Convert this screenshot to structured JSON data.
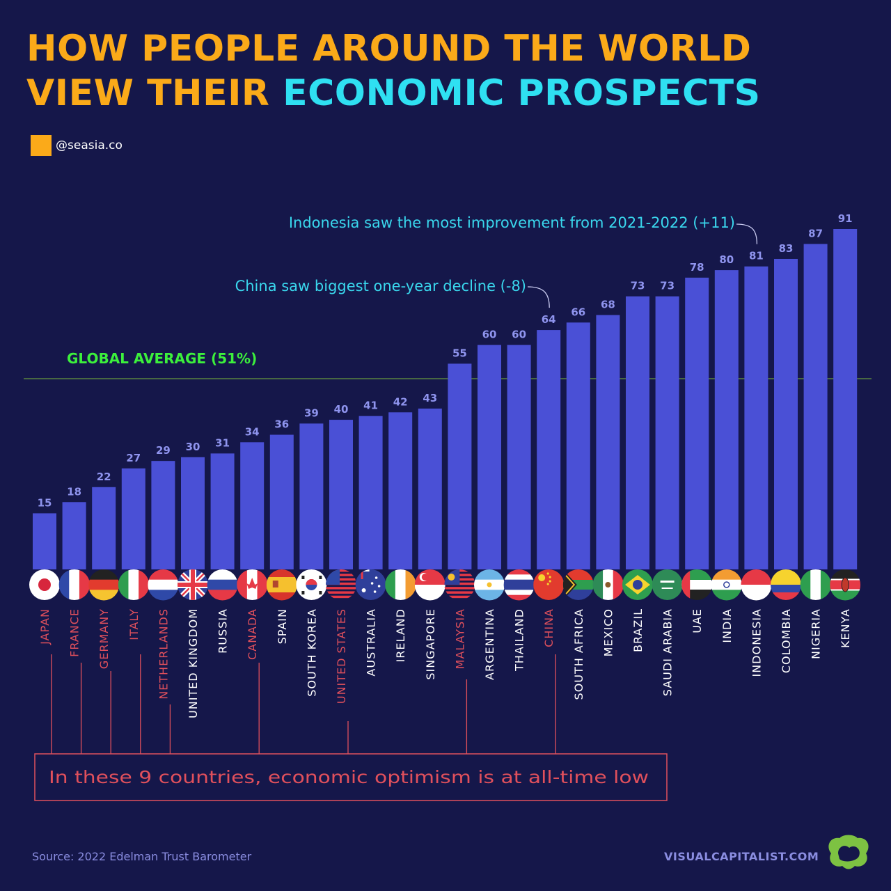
{
  "title": {
    "line1": "HOW PEOPLE AROUND THE WORLD",
    "line2_part1": "VIEW THEIR ",
    "line2_part2": "ECONOMIC PROSPECTS"
  },
  "brand": {
    "handle": "@seasia.co"
  },
  "colors": {
    "background": "#15174a",
    "bar": "#4a50d6",
    "title_orange": "#fbaa19",
    "title_cyan": "#2fe0f2",
    "average_green": "#3cf03c",
    "lowlight_red": "#e0505c",
    "annotation_cyan": "#3ad8ee"
  },
  "chart_data": {
    "type": "bar",
    "title": "HOW PEOPLE AROUND THE WORLD VIEW THEIR ECONOMIC PROSPECTS",
    "xlabel": "",
    "ylabel": "",
    "ylim": [
      0,
      100
    ],
    "categories": [
      "JAPAN",
      "FRANCE",
      "GERMANY",
      "ITALY",
      "NETHERLANDS",
      "UNITED KINGDOM",
      "RUSSIA",
      "CANADA",
      "SPAIN",
      "SOUTH KOREA",
      "UNITED STATES",
      "AUSTRALIA",
      "IRELAND",
      "SINGAPORE",
      "MALAYSIA",
      "ARGENTINA",
      "THAILAND",
      "CHINA",
      "SOUTH AFRICA",
      "MEXICO",
      "BRAZIL",
      "SAUDI ARABIA",
      "UAE",
      "INDIA",
      "INDONESIA",
      "COLOMBIA",
      "NIGERIA",
      "KENYA"
    ],
    "values": [
      15,
      18,
      22,
      27,
      29,
      30,
      31,
      34,
      36,
      39,
      40,
      41,
      42,
      43,
      55,
      60,
      60,
      64,
      66,
      68,
      73,
      73,
      78,
      80,
      81,
      83,
      87,
      91
    ],
    "all_time_low": [
      "JAPAN",
      "FRANCE",
      "GERMANY",
      "ITALY",
      "NETHERLANDS",
      "CANADA",
      "UNITED STATES",
      "MALAYSIA",
      "CHINA"
    ],
    "global_average": {
      "value": 51,
      "label": "GLOBAL AVERAGE (51%)"
    },
    "annotations": [
      {
        "country": "INDONESIA",
        "text": "Indonesia saw the most improvement from 2021-2022 (+11)"
      },
      {
        "country": "CHINA",
        "text": "China saw biggest one-year decline (-8)"
      }
    ],
    "callout": "In these 9 countries, economic optimism is at all-time low",
    "flags": [
      "JP",
      "FR",
      "DE",
      "IT",
      "NL",
      "GB",
      "RU",
      "CA",
      "ES",
      "KR",
      "US",
      "AU",
      "IE",
      "SG",
      "MY",
      "AR",
      "TH",
      "CN",
      "ZA",
      "MX",
      "BR",
      "SA",
      "AE",
      "IN",
      "ID",
      "CO",
      "NG",
      "KE"
    ]
  },
  "footer": {
    "source": "Source: 2022 Edelman Trust Barometer",
    "site": "VISUALCAPITALIST.COM",
    "logo_icon": "visual-capitalist-logo-icon"
  }
}
